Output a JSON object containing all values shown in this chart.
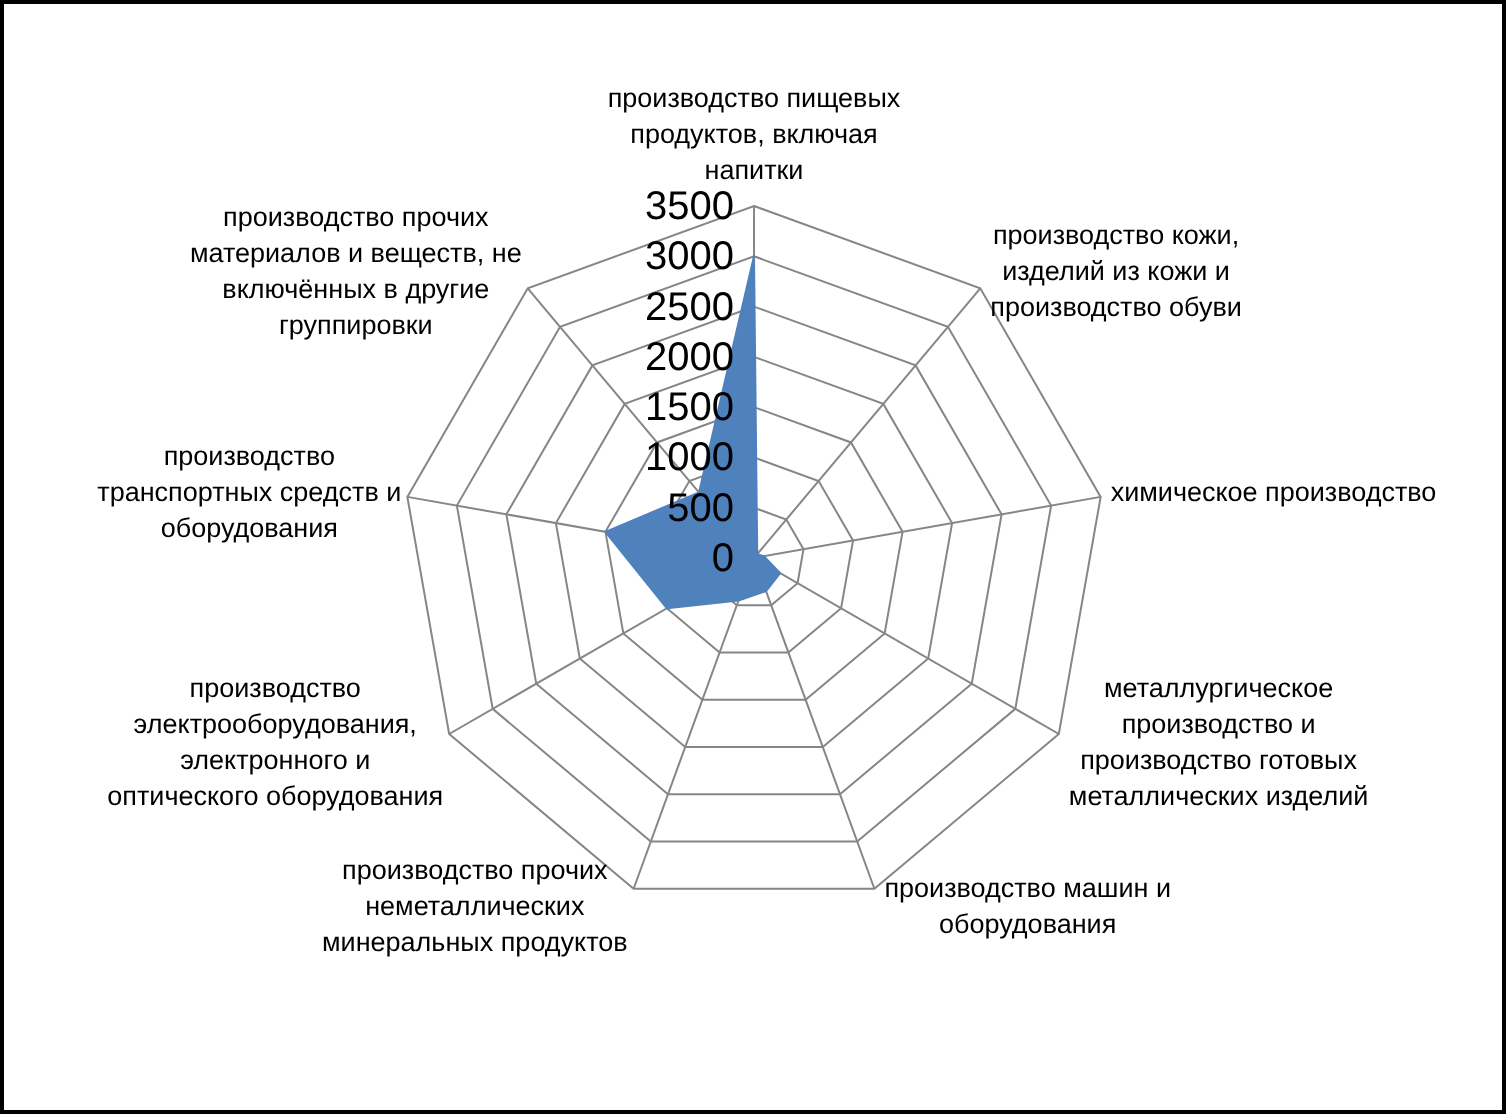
{
  "chart_data": {
    "type": "radar",
    "categories": [
      "производство пищевых продуктов, включая напитки",
      "производство кожи, изделий из кожи и производство обуви",
      "химическое производство",
      "металлургическое производство и производство готовых металлических изделий",
      "производство машин и оборудования",
      "производство прочих неметаллических минеральных продуктов",
      "производство электрооборудования, электронного и оптического оборудования",
      "производство транспортных средств и оборудования",
      "производство прочих материалов и веществ, не включённых в другие группировки"
    ],
    "series": [
      {
        "color": "#4f81bd",
        "values": [
          3000,
          50,
          100,
          300,
          350,
          450,
          1000,
          1500,
          850
        ]
      }
    ],
    "ylim": [
      0,
      3500
    ],
    "yticks": [
      0,
      500,
      1000,
      1500,
      2000,
      2500,
      3000,
      3500
    ],
    "grid": true
  }
}
